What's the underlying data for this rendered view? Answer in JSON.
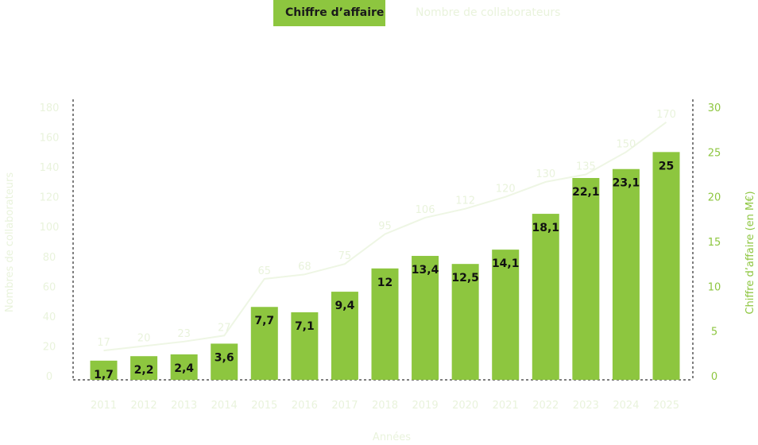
{
  "tabs": [
    {
      "label": "Chiffre d’affaire",
      "active": true
    },
    {
      "label": "Nombre de collaborateurs",
      "active": false
    }
  ],
  "colors": {
    "bar": "#8dc63f",
    "accent_tab": "#8dc63f",
    "tab_text_active": "#1a1a1a",
    "faded": "#eef6e4",
    "faded_text": "#e9f3dc",
    "right_axis_text": "#8dc63f",
    "axis_line": "#555555"
  },
  "chart_data": {
    "type": "bar",
    "categories": [
      "2011",
      "2012",
      "2013",
      "2014",
      "2015",
      "2016",
      "2017",
      "2018",
      "2019",
      "2020",
      "2021",
      "2022",
      "2023",
      "2024",
      "2025"
    ],
    "series": [
      {
        "name": "Chiffre d’affaire (en M€)",
        "axis": "right",
        "type": "bar",
        "values": [
          1.7,
          2.2,
          2.4,
          3.6,
          7.7,
          7.1,
          9.4,
          12,
          13.4,
          12.5,
          14.1,
          18.1,
          22.1,
          23.1,
          25
        ],
        "labels": [
          "1,7",
          "2,2",
          "2,4",
          "3,6",
          "7,7",
          "7,1",
          "9,4",
          "12",
          "13,4",
          "12,5",
          "14,1",
          "18,1",
          "22,1",
          "23,1",
          "25"
        ]
      },
      {
        "name": "Nombre de collaborateurs",
        "axis": "left",
        "type": "line",
        "values": [
          17,
          20,
          23,
          27,
          65,
          68,
          75,
          95,
          106,
          112,
          120,
          130,
          135,
          150,
          170
        ],
        "labels": [
          "17",
          "20",
          "23",
          "27",
          "65",
          "68",
          "75",
          "95",
          "106",
          "112",
          "120",
          "130",
          "135",
          "150",
          "170"
        ]
      }
    ],
    "xlabel": "Années",
    "ylabel_left": "Nombres de collaborateurs",
    "ylabel_right": "Chiffre d’affaire (en M€)",
    "ylim_left": [
      0,
      180
    ],
    "yticks_left": [
      "0",
      "20",
      "40",
      "60",
      "80",
      "100",
      "120",
      "140",
      "160",
      "180"
    ],
    "ylim_right": [
      0,
      30
    ],
    "yticks_right": [
      "0",
      "5",
      "10",
      "15",
      "20",
      "25",
      "30"
    ],
    "grid": false,
    "legend": "top-center"
  }
}
